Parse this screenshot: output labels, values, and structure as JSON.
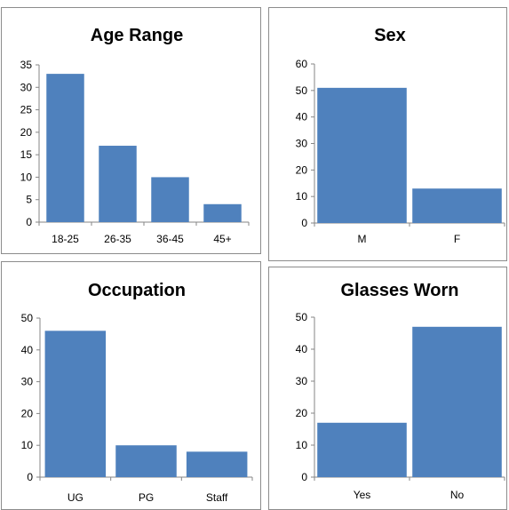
{
  "chart_data": [
    {
      "type": "bar",
      "title": "Age Range",
      "categories": [
        "18-25",
        "26-35",
        "36-45",
        "45+"
      ],
      "values": [
        33,
        17,
        10,
        4
      ],
      "ylim": [
        0,
        35
      ],
      "yticks": [
        0,
        5,
        10,
        15,
        20,
        25,
        30,
        35
      ],
      "xlabel": "",
      "ylabel": "",
      "grid": false,
      "legend": "none",
      "bar_color": "#4f81bd"
    },
    {
      "type": "bar",
      "title": "Sex",
      "categories": [
        "M",
        "F"
      ],
      "values": [
        51,
        13
      ],
      "ylim": [
        0,
        60
      ],
      "yticks": [
        0,
        10,
        20,
        30,
        40,
        50,
        60
      ],
      "xlabel": "",
      "ylabel": "",
      "grid": false,
      "legend": "none",
      "bar_color": "#4f81bd"
    },
    {
      "type": "bar",
      "title": "Occupation",
      "categories": [
        "UG",
        "PG",
        "Staff"
      ],
      "values": [
        46,
        10,
        8
      ],
      "ylim": [
        0,
        50
      ],
      "yticks": [
        0,
        10,
        20,
        30,
        40,
        50
      ],
      "xlabel": "",
      "ylabel": "",
      "grid": false,
      "legend": "none",
      "bar_color": "#4f81bd"
    },
    {
      "type": "bar",
      "title": "Glasses Worn",
      "categories": [
        "Yes",
        "No"
      ],
      "values": [
        17,
        47
      ],
      "ylim": [
        0,
        50
      ],
      "yticks": [
        0,
        10,
        20,
        30,
        40,
        50
      ],
      "xlabel": "",
      "ylabel": "",
      "grid": false,
      "legend": "none",
      "bar_color": "#4f81bd"
    }
  ]
}
